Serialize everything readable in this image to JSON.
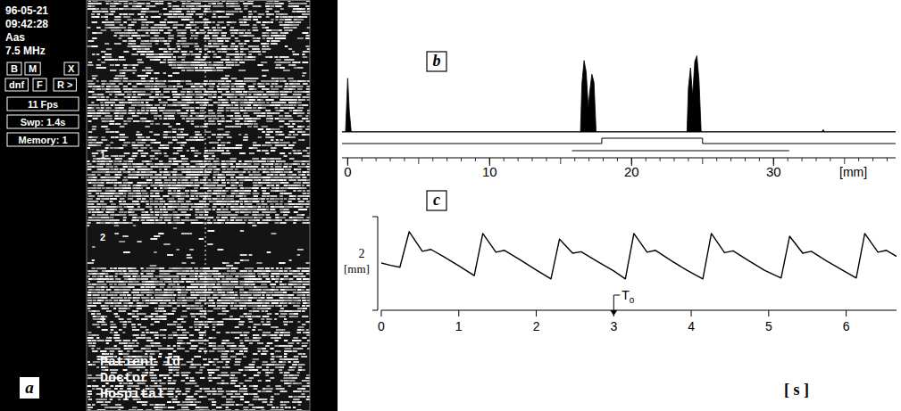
{
  "panel_a": {
    "letter": "a",
    "header": [
      "96-05-21",
      "09:42:28",
      "Aas",
      "7.5 MHz"
    ],
    "buttons": [
      [
        "B",
        "M",
        "X"
      ],
      [
        "dnf",
        "F",
        "R >"
      ]
    ],
    "boxes": [
      "11 Fps",
      "Swp: 1.4s",
      "Memory: 1"
    ],
    "image_markers": [
      "1",
      "2",
      "1"
    ],
    "footer": [
      "Patient Id :",
      "Doctor :",
      "Hospital :"
    ]
  },
  "chart_data": [
    {
      "type": "area",
      "letter": "b",
      "x_label": "[mm]",
      "color": "#000000",
      "x": [
        -0.4,
        -0.15,
        -0.05,
        0,
        0.05,
        0.12,
        0.25,
        16.4,
        16.5,
        16.65,
        16.8,
        16.95,
        17.05,
        17.2,
        17.35,
        17.5,
        23.9,
        24.0,
        24.15,
        24.3,
        24.45,
        24.6,
        24.75,
        24.9,
        33.4,
        33.5,
        33.6,
        38.6
      ],
      "values": [
        0,
        0,
        0.45,
        0.67,
        0.5,
        0.25,
        0,
        0,
        0.6,
        0.89,
        0.75,
        0.3,
        0.5,
        0.72,
        0.62,
        0,
        0,
        0.55,
        0.8,
        0.45,
        0.88,
        0.95,
        0.65,
        0,
        0,
        0.03,
        0,
        0
      ],
      "xlim": [
        -0.4,
        38.6
      ],
      "xticks": [
        0,
        10,
        20,
        30
      ],
      "minor_xticks": [
        0,
        1,
        2,
        3,
        4,
        5,
        6,
        7,
        8,
        9,
        10,
        11,
        12,
        13,
        14,
        15,
        16,
        17,
        18,
        19,
        20,
        21,
        22,
        23,
        24,
        25,
        26,
        27,
        28,
        29,
        30,
        31,
        32,
        33,
        34,
        35,
        36,
        37,
        38
      ],
      "ylim": [
        0,
        1
      ],
      "tick_labels": "x",
      "gate": {
        "pulse": [
          17.9,
          25.0
        ],
        "window": [
          15.8,
          31.1
        ]
      }
    },
    {
      "type": "line",
      "letter": "c",
      "x_label": "[ s ]",
      "color": "#000000",
      "x": [
        0,
        0.12,
        0.24,
        0.36,
        0.53,
        0.64,
        0.8,
        1.0,
        1.2,
        1.31,
        1.48,
        1.59,
        1.8,
        2.0,
        2.19,
        2.3,
        2.47,
        2.58,
        2.8,
        3.0,
        3.15,
        3.26,
        3.43,
        3.54,
        3.75,
        3.95,
        4.15,
        4.26,
        4.43,
        4.54,
        4.75,
        4.95,
        5.16,
        5.27,
        5.44,
        5.55,
        5.75,
        5.95,
        6.13,
        6.24,
        6.41,
        6.52,
        6.65
      ],
      "values": [
        1.01,
        0.96,
        0.92,
        1.68,
        1.26,
        1.3,
        1.15,
        0.95,
        0.74,
        1.64,
        1.24,
        1.28,
        1.07,
        0.86,
        0.67,
        1.52,
        1.22,
        1.25,
        1.03,
        0.84,
        0.67,
        1.64,
        1.24,
        1.28,
        1.05,
        0.85,
        0.67,
        1.64,
        1.23,
        1.27,
        1.05,
        0.85,
        0.69,
        1.58,
        1.22,
        1.26,
        1.05,
        0.86,
        0.69,
        1.64,
        1.24,
        1.28,
        1.15
      ],
      "xlim": [
        0,
        6.65
      ],
      "xticks": [
        0,
        1,
        2,
        3,
        4,
        5,
        6
      ],
      "ylim": [
        0,
        2
      ],
      "tick_labels": "x",
      "scale_bar": {
        "length": 2,
        "unit": "[mm]"
      },
      "annotation": {
        "text": "T",
        "subscript": "o",
        "x": 3
      }
    }
  ]
}
